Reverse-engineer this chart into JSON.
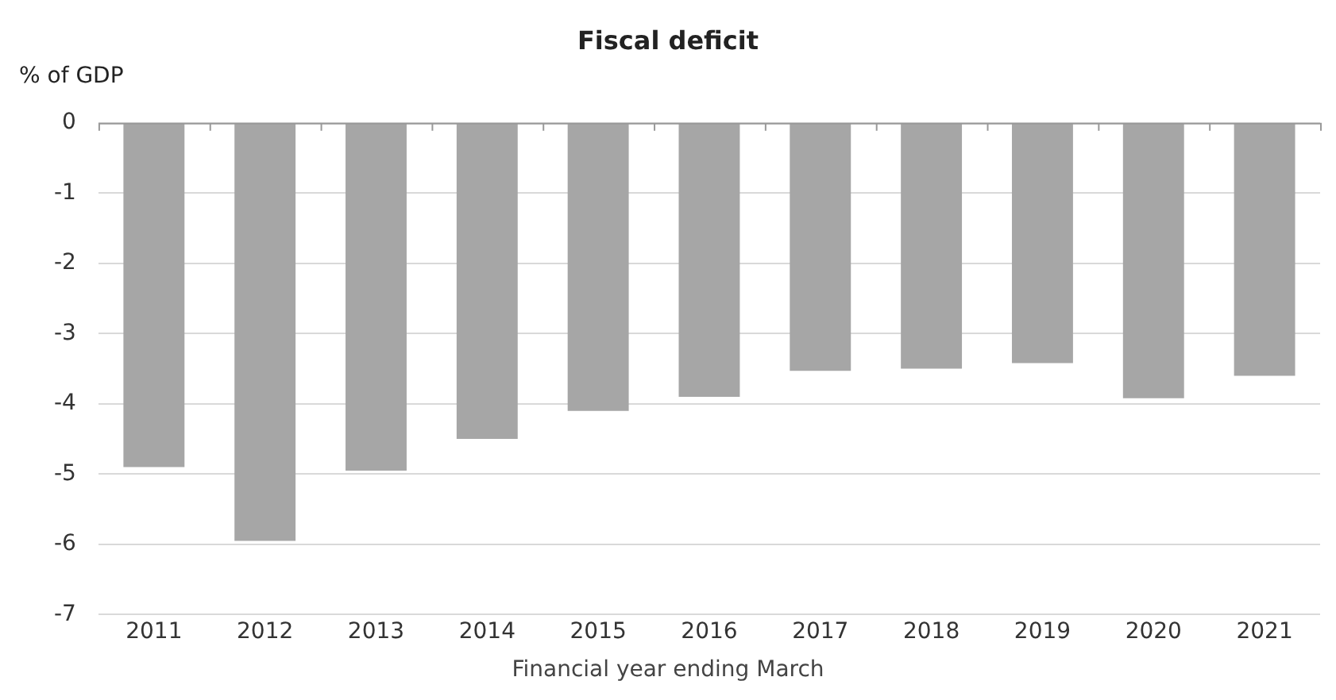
{
  "chart_data": {
    "type": "bar",
    "title": "Fiscal deficit",
    "ylabel": "% of GDP",
    "xlabel": "Financial year ending March",
    "categories": [
      "2011",
      "2012",
      "2013",
      "2014",
      "2015",
      "2016",
      "2017",
      "2018",
      "2019",
      "2020",
      "2021"
    ],
    "values": [
      -4.9,
      -5.95,
      -4.95,
      -4.5,
      -4.1,
      -3.9,
      -3.53,
      -3.5,
      -3.42,
      -3.92,
      -3.6
    ],
    "color": "#a6a6a6",
    "ylim": [
      -7,
      0
    ],
    "yticks": [
      -7,
      -6,
      -5,
      -4,
      -3,
      -2,
      -1,
      0
    ],
    "grid": "y",
    "legend": false
  }
}
